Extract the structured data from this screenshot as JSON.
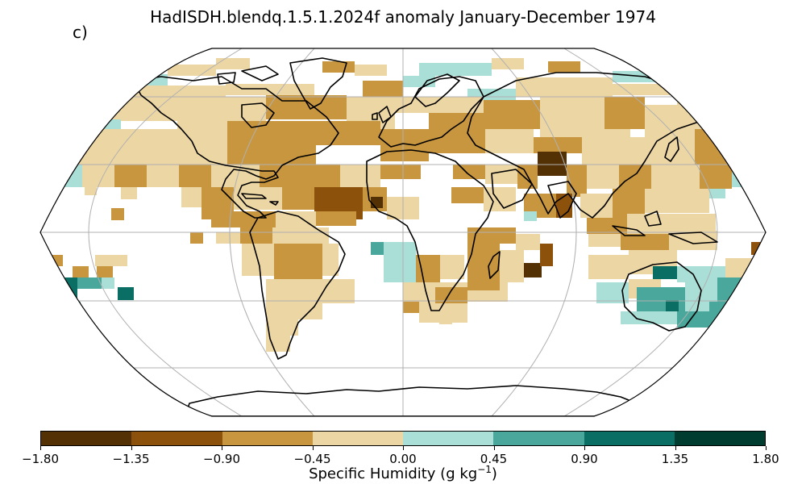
{
  "title": "HadISDH.blendq.1.5.1.2024f anomaly January-December 1974",
  "panel_label": "c)",
  "colorbar": {
    "label_text": "Specific Humidity (g kg",
    "label_exp": "−1",
    "label_close": ")",
    "ticks": [
      "−1.80",
      "−1.35",
      "−0.90",
      "−0.45",
      "0.00",
      "0.45",
      "0.90",
      "1.35",
      "1.80"
    ],
    "colors": [
      "#543005",
      "#8c510a",
      "#c8963f",
      "#ecd6a4",
      "#aadfd7",
      "#4aa79c",
      "#0b6e64",
      "#003c30"
    ]
  },
  "map": {
    "projection": "Robinson",
    "frame_color": "#000000",
    "graticule_color": "#b0b0b0",
    "coastline_color": "#000000"
  }
}
